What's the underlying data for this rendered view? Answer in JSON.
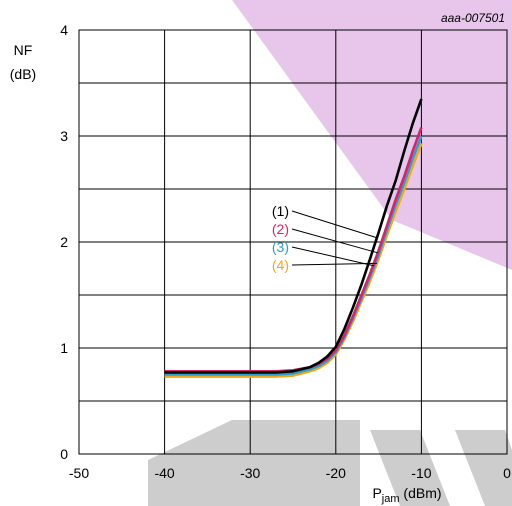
{
  "colors": {
    "watermark": "#e8c6ec",
    "watermark_gray": "#cdcdcd",
    "grid": "#000000",
    "series_1": "#000000",
    "series_2": "#d8226c",
    "series_3": "#2b9fc9",
    "series_4": "#f2a71b"
  },
  "figure_id": "aaa-007501",
  "chart_data": {
    "type": "line",
    "title": "",
    "ylabel_line1": "NF",
    "ylabel_line2": "(dB)",
    "xlabel_main": "P",
    "xlabel_sub": "jam",
    "xlabel_unit": " (dBm)",
    "xlim": [
      -50,
      0
    ],
    "ylim": [
      0,
      4
    ],
    "x_ticks": [
      -50,
      -40,
      -30,
      -20,
      -10,
      0
    ],
    "x_tick_labels": [
      "-50",
      "-40",
      "-30",
      "-20",
      "-10",
      "0"
    ],
    "y_ticks": [
      0,
      1,
      2,
      3,
      4
    ],
    "y_tick_labels": [
      "0",
      "1",
      "2",
      "3",
      "4"
    ],
    "grid": true,
    "series": [
      {
        "name": "(1)",
        "color": "#000000",
        "x": [
          -40,
          -35,
          -30,
          -27,
          -25,
          -23,
          -22,
          -21,
          -20,
          -19,
          -18,
          -17,
          -16,
          -15,
          -14,
          -13,
          -12,
          -11,
          -10
        ],
        "y": [
          0.77,
          0.77,
          0.77,
          0.77,
          0.78,
          0.82,
          0.86,
          0.92,
          1.01,
          1.18,
          1.38,
          1.6,
          1.84,
          2.09,
          2.35,
          2.58,
          2.86,
          3.12,
          3.35
        ]
      },
      {
        "name": "(2)",
        "color": "#d8226c",
        "x": [
          -40,
          -35,
          -30,
          -27,
          -25,
          -23,
          -22,
          -21,
          -20,
          -19,
          -18,
          -17,
          -16,
          -15,
          -14,
          -13,
          -12,
          -11,
          -10
        ],
        "y": [
          0.78,
          0.78,
          0.78,
          0.78,
          0.79,
          0.82,
          0.85,
          0.9,
          0.98,
          1.12,
          1.3,
          1.5,
          1.7,
          1.92,
          2.16,
          2.4,
          2.62,
          2.86,
          3.08
        ]
      },
      {
        "name": "(3)",
        "color": "#2b9fc9",
        "x": [
          -40,
          -35,
          -30,
          -27,
          -25,
          -23,
          -22,
          -21,
          -20,
          -19,
          -18,
          -17,
          -16,
          -15,
          -14,
          -13,
          -12,
          -11,
          -10
        ],
        "y": [
          0.75,
          0.75,
          0.75,
          0.75,
          0.76,
          0.8,
          0.83,
          0.88,
          0.96,
          1.1,
          1.28,
          1.47,
          1.67,
          1.88,
          2.12,
          2.35,
          2.56,
          2.79,
          3.0
        ]
      },
      {
        "name": "(4)",
        "color": "#f2a71b",
        "x": [
          -40,
          -35,
          -30,
          -27,
          -25,
          -23,
          -22,
          -21,
          -20,
          -19,
          -18,
          -17,
          -16,
          -15,
          -14,
          -13,
          -12,
          -11,
          -10
        ],
        "y": [
          0.73,
          0.73,
          0.73,
          0.73,
          0.74,
          0.78,
          0.81,
          0.86,
          0.94,
          1.08,
          1.25,
          1.44,
          1.63,
          1.84,
          2.07,
          2.29,
          2.5,
          2.72,
          2.93
        ]
      }
    ],
    "annotations": [
      {
        "label": "(1)",
        "series": 0,
        "target_x": -15.2
      },
      {
        "label": "(2)",
        "series": 1,
        "target_x": -15.1
      },
      {
        "label": "(3)",
        "series": 2,
        "target_x": -15.5
      },
      {
        "label": "(4)",
        "series": 3,
        "target_x": -15.2
      }
    ]
  }
}
